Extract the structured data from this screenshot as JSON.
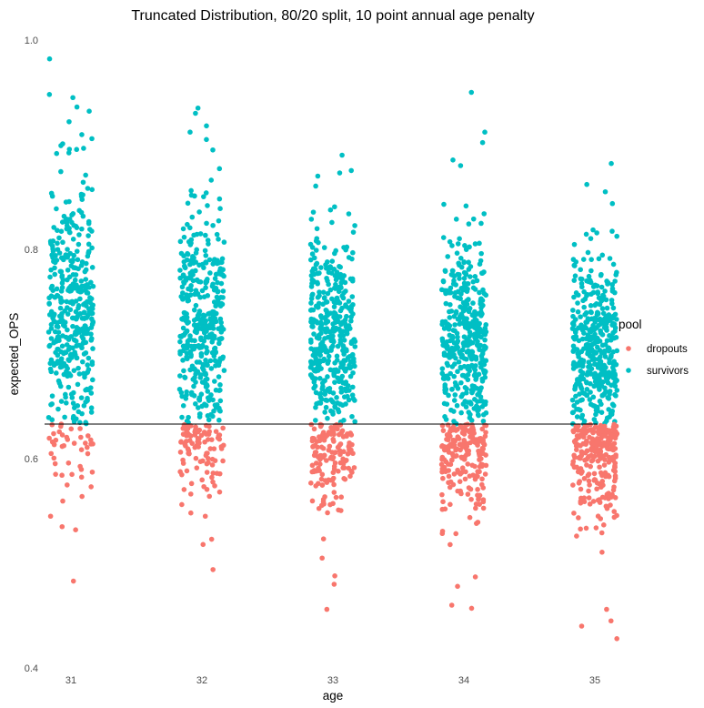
{
  "chart_data": {
    "type": "scatter",
    "title": "Truncated Distribution, 80/20 split, 10 point annual age penalty",
    "xlabel": "age",
    "ylabel": "expected_OPS",
    "x_ticks": [
      "31",
      "32",
      "33",
      "34",
      "35"
    ],
    "x_values": [
      31,
      32,
      33,
      34,
      35
    ],
    "y_ticks": [
      "0.4",
      "0.6",
      "0.8",
      "1.0"
    ],
    "y_tick_values": [
      0.4,
      0.6,
      0.8,
      1.0
    ],
    "ylim": [
      0.4,
      1.0
    ],
    "xlim": [
      30.8,
      35.2
    ],
    "grid": false,
    "jitter": "horizontal, approx ±0.17 age units",
    "reference_line": {
      "type": "hline",
      "y": 0.633,
      "color": "#000000"
    },
    "legend": {
      "title": "pool",
      "position": "right",
      "entries": [
        {
          "name": "dropouts",
          "color": "#F8766D"
        },
        {
          "name": "survivors",
          "color": "#00BFC4"
        }
      ]
    },
    "series": [
      {
        "name": "survivors",
        "color": "#00BFC4",
        "per_age": [
          {
            "age": 31,
            "count": 400,
            "min": 0.633,
            "max": 0.982,
            "mean": 0.74,
            "sd": 0.065,
            "notable_points": [
              0.982,
              0.948,
              0.945,
              0.936,
              0.932
            ]
          },
          {
            "age": 32,
            "count": 400,
            "min": 0.633,
            "max": 0.935,
            "mean": 0.725,
            "sd": 0.06,
            "notable_points": [
              0.935,
              0.93,
              0.918,
              0.912
            ]
          },
          {
            "age": 33,
            "count": 400,
            "min": 0.633,
            "max": 0.89,
            "mean": 0.715,
            "sd": 0.055,
            "notable_points": [
              0.89,
              0.873,
              0.87
            ]
          },
          {
            "age": 34,
            "count": 400,
            "min": 0.633,
            "max": 0.95,
            "mean": 0.715,
            "sd": 0.055,
            "notable_points": [
              0.95,
              0.912,
              0.902,
              0.88
            ]
          },
          {
            "age": 35,
            "count": 400,
            "min": 0.633,
            "max": 0.882,
            "mean": 0.7,
            "sd": 0.05,
            "notable_points": [
              0.882,
              0.862,
              0.855
            ]
          }
        ]
      },
      {
        "name": "dropouts",
        "color": "#F8766D",
        "per_age": [
          {
            "age": 31,
            "count": 45,
            "min": 0.483,
            "max": 0.633,
            "mean": 0.6,
            "sd": 0.035,
            "notable_points": [
              0.483,
              0.532,
              0.535,
              0.545
            ]
          },
          {
            "age": 32,
            "count": 100,
            "min": 0.494,
            "max": 0.633,
            "mean": 0.595,
            "sd": 0.035,
            "notable_points": [
              0.494,
              0.518,
              0.523,
              0.545
            ]
          },
          {
            "age": 33,
            "count": 150,
            "min": 0.456,
            "max": 0.633,
            "mean": 0.59,
            "sd": 0.04,
            "notable_points": [
              0.456,
              0.48,
              0.488,
              0.505
            ]
          },
          {
            "age": 34,
            "count": 200,
            "min": 0.457,
            "max": 0.633,
            "mean": 0.59,
            "sd": 0.04,
            "notable_points": [
              0.457,
              0.46,
              0.478,
              0.487
            ]
          },
          {
            "age": 35,
            "count": 250,
            "min": 0.428,
            "max": 0.633,
            "mean": 0.585,
            "sd": 0.045,
            "notable_points": [
              0.428,
              0.44,
              0.445,
              0.456
            ]
          }
        ]
      }
    ]
  }
}
